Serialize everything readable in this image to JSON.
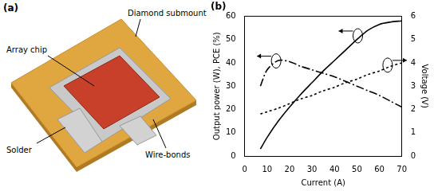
{
  "figure_a": {
    "label": "(a)",
    "callouts": {
      "submount": "Diamond submount",
      "chip": "Array chip",
      "solder": "Solder",
      "wire_bonds": "Wire-bonds"
    }
  },
  "chart_data": {
    "type": "line",
    "title": "(b)",
    "x_label": "Current (A)",
    "y_label": "Output power (W), PCE (%)",
    "y2_label": "Voltage (V)",
    "x": [
      7,
      10,
      15,
      20,
      25,
      30,
      35,
      40,
      45,
      50,
      55,
      60,
      65,
      70
    ],
    "series": [
      {
        "color": "#000000",
        "line_style": "solid",
        "marker": "none",
        "axis": "y",
        "values": [
          3,
          8,
          15,
          21,
          26.5,
          31.5,
          36.5,
          41,
          45.5,
          50,
          54,
          56.5,
          57.5,
          58
        ]
      },
      {
        "color": "#000000",
        "line_style": "dashdot",
        "marker": "none",
        "axis": "y",
        "values": [
          30,
          37,
          41,
          40.5,
          38.5,
          37,
          35.5,
          34,
          32,
          30,
          28,
          26,
          23.5,
          21
        ]
      },
      {
        "color": "#000000",
        "line_style": "dotted",
        "marker": "none",
        "axis": "y2",
        "values": [
          1.8,
          1.9,
          2.05,
          2.25,
          2.45,
          2.6,
          2.8,
          2.95,
          3.15,
          3.3,
          3.5,
          3.65,
          3.85,
          4.0
        ]
      }
    ],
    "xlim": [
      0,
      70
    ],
    "xticks": [
      0,
      10,
      20,
      30,
      40,
      50,
      60,
      70
    ],
    "ylim": [
      0,
      60
    ],
    "yticks": [
      0,
      10,
      20,
      30,
      40,
      50,
      60
    ],
    "y2lim": [
      0,
      6
    ],
    "y2ticks": [
      0,
      1,
      2,
      3,
      4,
      5,
      6
    ],
    "grid": false
  }
}
